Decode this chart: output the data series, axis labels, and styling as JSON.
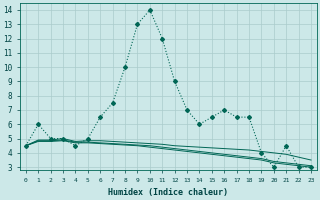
{
  "xlabel": "Humidex (Indice chaleur)",
  "background_color": "#cce8e8",
  "grid_color": "#aacccc",
  "line_color": "#006655",
  "xlim": [
    -0.5,
    23.5
  ],
  "ylim": [
    2.8,
    14.5
  ],
  "yticks": [
    3,
    4,
    5,
    6,
    7,
    8,
    9,
    10,
    11,
    12,
    13,
    14
  ],
  "xticks": [
    0,
    1,
    2,
    3,
    4,
    5,
    6,
    7,
    8,
    9,
    10,
    11,
    12,
    13,
    14,
    15,
    16,
    17,
    18,
    19,
    20,
    21,
    22,
    23
  ],
  "main_series": [
    4.5,
    6.0,
    5.0,
    5.0,
    4.5,
    5.0,
    6.5,
    7.5,
    10.0,
    13.0,
    14.0,
    12.0,
    9.0,
    7.0,
    6.0,
    6.5,
    7.0,
    6.5,
    6.5,
    4.0,
    3.0,
    4.5,
    3.0,
    3.0
  ],
  "line2": [
    4.5,
    4.9,
    4.9,
    5.0,
    4.8,
    4.85,
    4.85,
    4.8,
    4.75,
    4.7,
    4.65,
    4.6,
    4.5,
    4.45,
    4.4,
    4.35,
    4.3,
    4.25,
    4.2,
    4.1,
    4.0,
    3.9,
    3.7,
    3.5
  ],
  "line3": [
    4.5,
    4.85,
    4.85,
    4.9,
    4.75,
    4.75,
    4.7,
    4.65,
    4.6,
    4.55,
    4.5,
    4.4,
    4.3,
    4.2,
    4.1,
    4.0,
    3.9,
    3.8,
    3.7,
    3.6,
    3.4,
    3.3,
    3.2,
    3.1
  ],
  "line4": [
    4.5,
    4.8,
    4.8,
    4.85,
    4.7,
    4.7,
    4.65,
    4.6,
    4.55,
    4.5,
    4.4,
    4.3,
    4.2,
    4.1,
    4.0,
    3.9,
    3.8,
    3.7,
    3.6,
    3.5,
    3.3,
    3.2,
    3.1,
    3.0
  ]
}
